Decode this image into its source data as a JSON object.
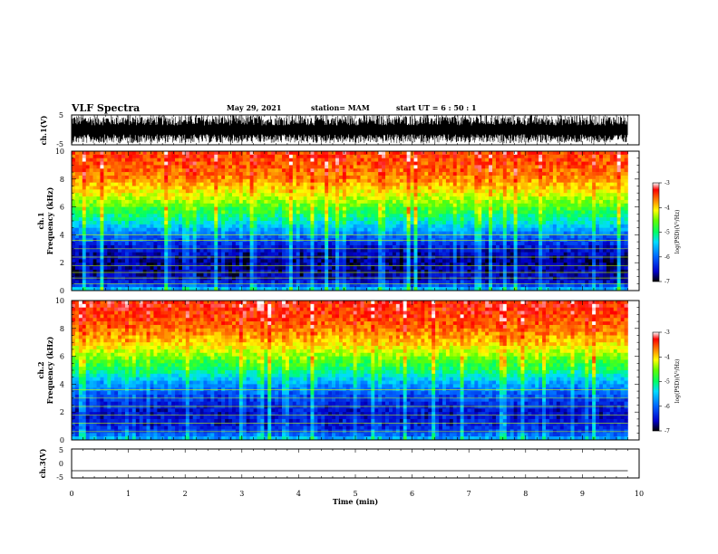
{
  "header": {
    "title": "VLF Spectra",
    "date": "May 29, 2021",
    "station": "station= MAM",
    "start": "start  UT =  6 : 50 : 1"
  },
  "chart_data": [
    {
      "type": "line",
      "panel": "ch1-waveform",
      "ylabel": "ch.1(V)",
      "ylim": [
        -5,
        5
      ],
      "yticks": [
        "5",
        "-5"
      ],
      "xlim": [
        0,
        10
      ],
      "description": "dense noisy waveform spanning about -4 to +5 V over 0 to 9.8 min"
    },
    {
      "type": "heatmap",
      "panel": "ch1-spectrogram",
      "ylabel_1": "ch.1",
      "ylabel_2": "Frequency  (kHz)",
      "ylim": [
        0,
        10
      ],
      "yticks": [
        "0",
        "2",
        "4",
        "6",
        "8",
        "10"
      ],
      "xlim": [
        0,
        10
      ],
      "data_end_min": 9.8,
      "colorbar": {
        "label": "log(PSD)(V²/Hz)",
        "ticks": [
          "-3",
          "-4",
          "-5",
          "-6",
          "-7"
        ],
        "range": [
          -7,
          -3
        ]
      },
      "frequency_profile_kHz": [
        0,
        0.5,
        1,
        2,
        3,
        4,
        5,
        6,
        7,
        8,
        9,
        10
      ],
      "log_psd_profile": [
        -5.2,
        -6.3,
        -6.5,
        -6.6,
        -6.4,
        -5.8,
        -5.1,
        -4.6,
        -4.1,
        -3.7,
        -3.5,
        -3.4
      ],
      "horizontal_lines_kHz": [
        0.5,
        0.9,
        1.3,
        1.8,
        2.4,
        3.0,
        3.6,
        4.0
      ]
    },
    {
      "type": "heatmap",
      "panel": "ch2-spectrogram",
      "ylabel_1": "ch.2",
      "ylabel_2": "Frequency  (kHz)",
      "ylim": [
        0,
        10
      ],
      "yticks": [
        "0",
        "2",
        "4",
        "6",
        "8",
        "10"
      ],
      "xlim": [
        0,
        10
      ],
      "data_end_min": 9.8,
      "colorbar": {
        "label": "log(PSD)(V²/Hz)",
        "ticks": [
          "-3",
          "-4",
          "-5",
          "-6",
          "-7"
        ],
        "range": [
          -7,
          -3
        ]
      },
      "frequency_profile_kHz": [
        0,
        0.5,
        1,
        2,
        3,
        4,
        5,
        6,
        7,
        8,
        9,
        10
      ],
      "log_psd_profile": [
        -5.4,
        -6.0,
        -6.3,
        -6.4,
        -6.1,
        -5.6,
        -4.9,
        -4.4,
        -3.9,
        -3.6,
        -3.4,
        -3.3
      ],
      "horizontal_lines_kHz": [
        0.6,
        1.2,
        1.8,
        2.4,
        3.0,
        3.6
      ]
    },
    {
      "type": "line",
      "panel": "ch3-waveform",
      "ylabel": "ch.3(V)",
      "ylim": [
        -5,
        5
      ],
      "yticks": [
        "5",
        "0",
        "-5"
      ],
      "xlim": [
        0,
        10
      ],
      "xlabel": "Time  (min)",
      "xticks": [
        "0",
        "1",
        "2",
        "3",
        "4",
        "5",
        "6",
        "7",
        "8",
        "9",
        "10"
      ],
      "constant_value_V": -2.5
    }
  ],
  "colors": {
    "colormap": [
      "#00005a",
      "#0000ff",
      "#00b4ff",
      "#00ffc8",
      "#00ff00",
      "#c8ff00",
      "#ffff00",
      "#ff8000",
      "#ff0000",
      "#ffffff"
    ],
    "axis": "#000000",
    "background": "#ffffff"
  }
}
